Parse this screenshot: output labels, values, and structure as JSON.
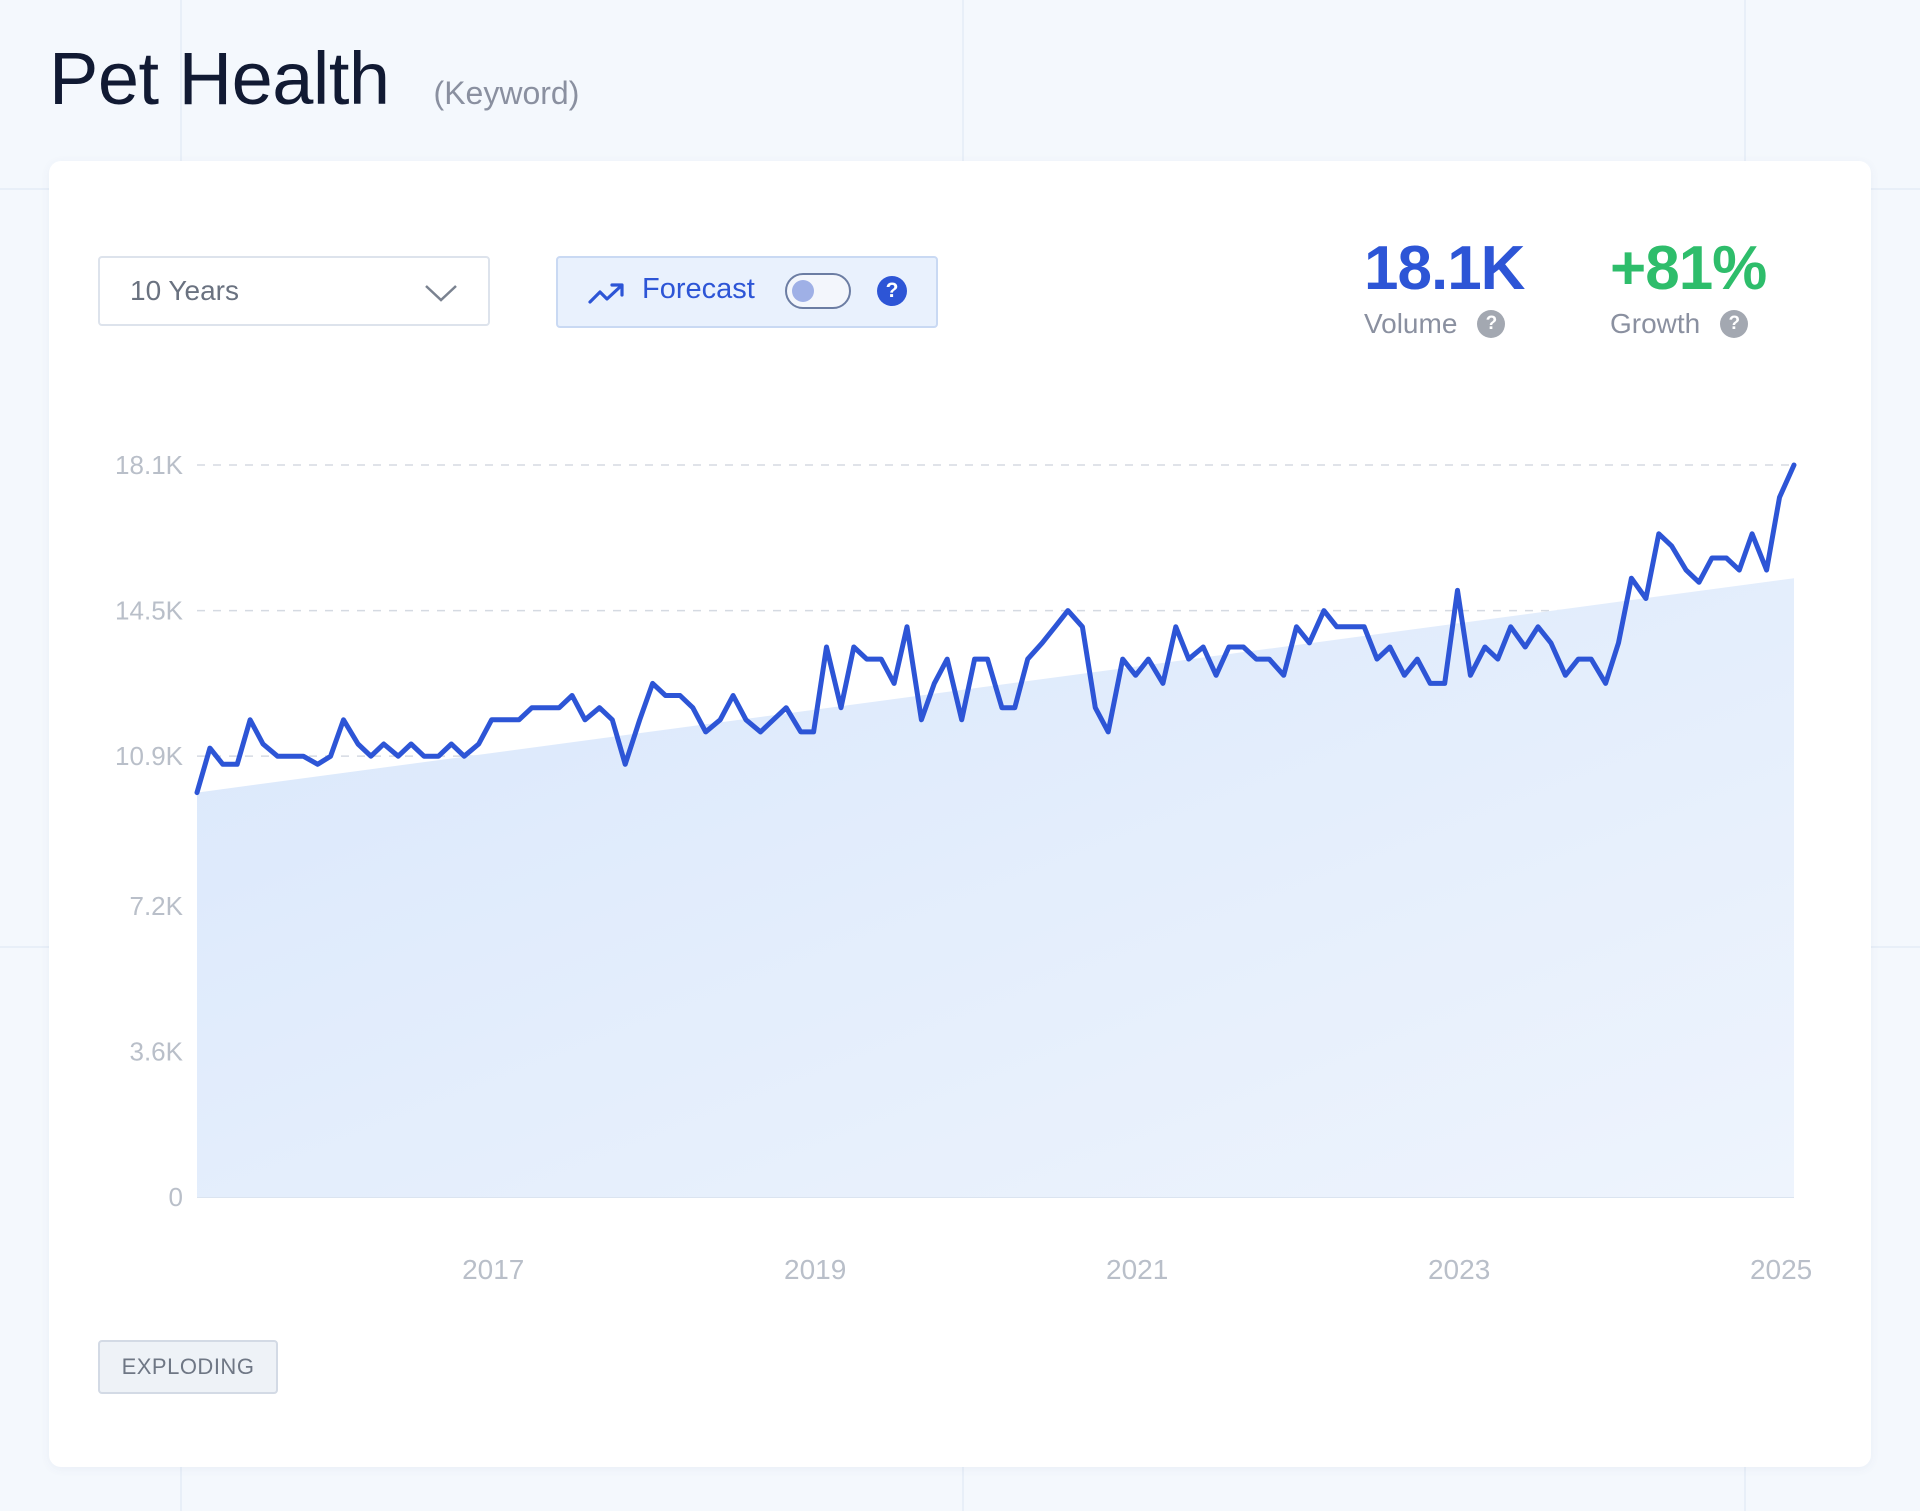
{
  "header": {
    "title": "Pet Health",
    "subtitle": "(Keyword)"
  },
  "controls": {
    "range_value": "10 Years",
    "forecast_label": "Forecast",
    "forecast_enabled": false,
    "forecast_help": "?"
  },
  "stats": {
    "volume_value": "18.1K",
    "volume_label": "Volume",
    "growth_value": "+81%",
    "growth_label": "Growth",
    "help_glyph": "?"
  },
  "status_badge": "EXPLODING",
  "colors": {
    "line": "#2d55d6",
    "growth": "#2ebd6b",
    "area": "#dce9fb"
  },
  "chart_data": {
    "type": "line",
    "y_ticks": [
      "0",
      "3.6K",
      "7.2K",
      "10.9K",
      "14.5K",
      "18.1K"
    ],
    "y_tick_values": [
      0,
      3600,
      7200,
      10900,
      14500,
      18100
    ],
    "ylim": [
      0,
      18100
    ],
    "x_ticks": [
      "2017",
      "2019",
      "2021",
      "2023",
      "2025"
    ],
    "x_tick_values": [
      2017,
      2019,
      2021,
      2023,
      2025
    ],
    "xlim": [
      2015.16,
      2025.08
    ],
    "grid": true,
    "trend": {
      "start": 10000,
      "end": 15300
    },
    "x": [
      2015.16,
      2015.24,
      2015.32,
      2015.41,
      2015.49,
      2015.57,
      2015.66,
      2015.74,
      2015.82,
      2015.91,
      2015.99,
      2016.07,
      2016.16,
      2016.24,
      2016.32,
      2016.41,
      2016.49,
      2016.57,
      2016.66,
      2016.74,
      2016.82,
      2016.91,
      2016.99,
      2017.07,
      2017.16,
      2017.24,
      2017.32,
      2017.41,
      2017.49,
      2017.57,
      2017.66,
      2017.74,
      2017.82,
      2017.91,
      2017.99,
      2018.07,
      2018.16,
      2018.24,
      2018.32,
      2018.41,
      2018.49,
      2018.57,
      2018.66,
      2018.74,
      2018.82,
      2018.91,
      2018.99,
      2019.07,
      2019.16,
      2019.24,
      2019.32,
      2019.41,
      2019.49,
      2019.57,
      2019.66,
      2019.74,
      2019.82,
      2019.91,
      2019.99,
      2020.07,
      2020.16,
      2020.24,
      2020.32,
      2020.41,
      2020.49,
      2020.57,
      2020.66,
      2020.74,
      2020.82,
      2020.91,
      2020.99,
      2021.07,
      2021.16,
      2021.24,
      2021.32,
      2021.41,
      2021.49,
      2021.57,
      2021.66,
      2021.74,
      2021.82,
      2021.91,
      2021.99,
      2022.07,
      2022.16,
      2022.24,
      2022.32,
      2022.41,
      2022.49,
      2022.57,
      2022.66,
      2022.74,
      2022.82,
      2022.91,
      2022.99,
      2023.07,
      2023.16,
      2023.24,
      2023.32,
      2023.41,
      2023.49,
      2023.57,
      2023.66,
      2023.74,
      2023.82,
      2023.91,
      2023.99,
      2024.07,
      2024.16,
      2024.24,
      2024.32,
      2024.41,
      2024.49,
      2024.57,
      2024.66,
      2024.74,
      2024.82,
      2024.91,
      2024.99,
      2025.08
    ],
    "values": [
      10000,
      11100,
      10700,
      10700,
      11800,
      11200,
      10900,
      10900,
      10900,
      10700,
      10900,
      11800,
      11200,
      10900,
      11200,
      10900,
      11200,
      10900,
      10900,
      11200,
      10900,
      11200,
      11800,
      11800,
      11800,
      12100,
      12100,
      12100,
      12400,
      11800,
      12100,
      11800,
      10700,
      11800,
      12700,
      12400,
      12400,
      12100,
      11500,
      11800,
      12400,
      11800,
      11500,
      11800,
      12100,
      11500,
      11500,
      13600,
      12100,
      13600,
      13300,
      13300,
      12700,
      14100,
      11800,
      12700,
      13300,
      11800,
      13300,
      13300,
      12100,
      12100,
      13300,
      13700,
      14100,
      14500,
      14100,
      12100,
      11500,
      13300,
      12900,
      13300,
      12700,
      14100,
      13300,
      13600,
      12900,
      13600,
      13600,
      13300,
      13300,
      12900,
      14100,
      13700,
      14500,
      14100,
      14100,
      14100,
      13300,
      13600,
      12900,
      13300,
      12700,
      12700,
      15000,
      12900,
      13600,
      13300,
      14100,
      13600,
      14100,
      13700,
      12900,
      13300,
      13300,
      12700,
      13700,
      15300,
      14800,
      16400,
      16100,
      15500,
      15200,
      15800,
      15800,
      15500,
      16400,
      15500,
      17300,
      18100
    ]
  }
}
